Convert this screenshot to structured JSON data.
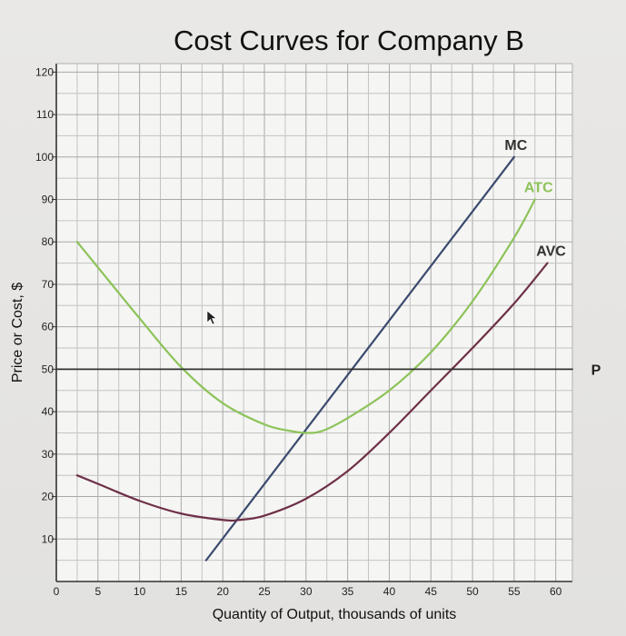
{
  "chart_data": {
    "type": "line",
    "title": "Cost Curves for Company B",
    "xlabel": "Quantity of Output, thousands of units",
    "ylabel": "Price or Cost, $",
    "xlim": [
      0,
      62
    ],
    "ylim": [
      0,
      122
    ],
    "x_ticks": [
      0,
      5,
      10,
      15,
      20,
      25,
      30,
      35,
      40,
      45,
      50,
      55,
      60
    ],
    "y_ticks": [
      10,
      20,
      30,
      40,
      50,
      60,
      70,
      80,
      90,
      100,
      110,
      120
    ],
    "grid": true,
    "series": [
      {
        "name": "MC",
        "color": "#3a4a6e",
        "x": [
          18,
          55
        ],
        "y": [
          5,
          100
        ]
      },
      {
        "name": "ATC",
        "color": "#8dc35a",
        "x": [
          2.5,
          5,
          10,
          15,
          20,
          25,
          28,
          30,
          32,
          35,
          40,
          45,
          50,
          55,
          57.5
        ],
        "y": [
          80,
          74,
          62,
          50.5,
          42,
          37,
          35.5,
          35,
          35.5,
          38.5,
          45,
          54,
          66,
          81,
          90
        ]
      },
      {
        "name": "AVC",
        "color": "#6e3048",
        "x": [
          2.5,
          5,
          10,
          15,
          20,
          22,
          25,
          30,
          35,
          40,
          45,
          50,
          55,
          59
        ],
        "y": [
          25,
          23,
          19,
          16,
          14.5,
          14.5,
          15.5,
          19.5,
          26,
          35,
          45,
          55,
          65.5,
          75
        ]
      },
      {
        "name": "P",
        "color": "#333333",
        "x": [
          0,
          62
        ],
        "y": [
          50,
          50
        ]
      }
    ]
  }
}
